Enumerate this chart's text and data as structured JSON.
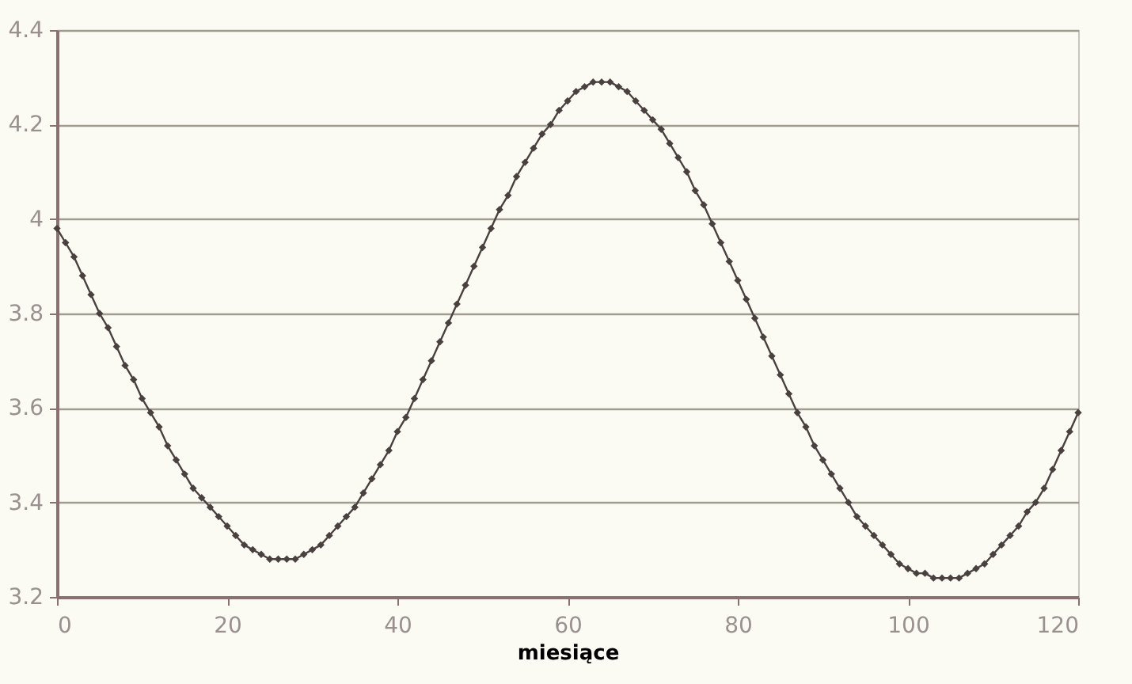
{
  "chart_data": {
    "type": "line",
    "xlabel": "miesiące",
    "xlim": [
      0,
      120
    ],
    "xticks": [
      0,
      20,
      40,
      60,
      80,
      100,
      120
    ],
    "ylim": [
      3.2,
      4.4
    ],
    "yticks": [
      3.2,
      3.4,
      3.6,
      3.8,
      4,
      4.2,
      4.4
    ],
    "grid": "y",
    "marker": "diamond",
    "line_style": "solid",
    "x": [
      0,
      1,
      2,
      3,
      4,
      5,
      6,
      7,
      8,
      9,
      10,
      11,
      12,
      13,
      14,
      15,
      16,
      17,
      18,
      19,
      20,
      21,
      22,
      23,
      24,
      25,
      26,
      27,
      28,
      29,
      30,
      31,
      32,
      33,
      34,
      35,
      36,
      37,
      38,
      39,
      40,
      41,
      42,
      43,
      44,
      45,
      46,
      47,
      48,
      49,
      50,
      51,
      52,
      53,
      54,
      55,
      56,
      57,
      58,
      59,
      60,
      61,
      62,
      63,
      64,
      65,
      66,
      67,
      68,
      69,
      70,
      71,
      72,
      73,
      74,
      75,
      76,
      77,
      78,
      79,
      80,
      81,
      82,
      83,
      84,
      85,
      86,
      87,
      88,
      89,
      90,
      91,
      92,
      93,
      94,
      95,
      96,
      97,
      98,
      99,
      100,
      101,
      102,
      103,
      104,
      105,
      106,
      107,
      108,
      109,
      110,
      111,
      112,
      113,
      114,
      115,
      116,
      117,
      118,
      119,
      120
    ],
    "series": [
      {
        "color": "#4a4040",
        "values": [
          3.98,
          3.95,
          3.92,
          3.88,
          3.84,
          3.8,
          3.77,
          3.73,
          3.69,
          3.66,
          3.62,
          3.59,
          3.56,
          3.52,
          3.49,
          3.46,
          3.43,
          3.41,
          3.39,
          3.37,
          3.35,
          3.33,
          3.31,
          3.3,
          3.29,
          3.28,
          3.28,
          3.28,
          3.28,
          3.29,
          3.3,
          3.31,
          3.33,
          3.35,
          3.37,
          3.39,
          3.42,
          3.45,
          3.48,
          3.51,
          3.55,
          3.58,
          3.62,
          3.66,
          3.7,
          3.74,
          3.78,
          3.82,
          3.86,
          3.9,
          3.94,
          3.98,
          4.02,
          4.05,
          4.09,
          4.12,
          4.15,
          4.18,
          4.2,
          4.23,
          4.25,
          4.27,
          4.28,
          4.29,
          4.29,
          4.29,
          4.28,
          4.27,
          4.25,
          4.23,
          4.21,
          4.19,
          4.16,
          4.13,
          4.1,
          4.06,
          4.03,
          3.99,
          3.95,
          3.91,
          3.87,
          3.83,
          3.79,
          3.75,
          3.71,
          3.67,
          3.63,
          3.59,
          3.56,
          3.52,
          3.49,
          3.46,
          3.43,
          3.4,
          3.37,
          3.35,
          3.33,
          3.31,
          3.29,
          3.27,
          3.26,
          3.25,
          3.25,
          3.24,
          3.24,
          3.24,
          3.24,
          3.25,
          3.26,
          3.27,
          3.29,
          3.31,
          3.33,
          3.35,
          3.38,
          3.4,
          3.43,
          3.47,
          3.51,
          3.55,
          3.59
        ]
      }
    ]
  }
}
